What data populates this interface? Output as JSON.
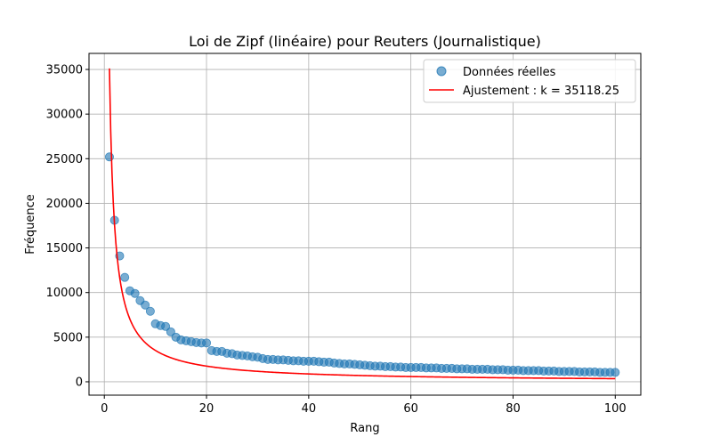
{
  "chart_data": {
    "type": "scatter",
    "title": "Loi de Zipf (linéaire) pour Reuters (Journalistique)",
    "xlabel": "Rang",
    "ylabel": "Fréquence",
    "xlim": [
      -3,
      105
    ],
    "ylim": [
      -1500,
      36800
    ],
    "x_ticks": [
      0,
      20,
      40,
      60,
      80,
      100
    ],
    "y_ticks": [
      0,
      5000,
      10000,
      15000,
      20000,
      25000,
      30000,
      35000
    ],
    "grid": true,
    "legend_position": "top-right",
    "fit_k": 35118.25,
    "series": [
      {
        "name": "Données réelles",
        "kind": "scatter",
        "color": "#1f77b4",
        "x": [
          1,
          2,
          3,
          4,
          5,
          6,
          7,
          8,
          9,
          10,
          11,
          12,
          13,
          14,
          15,
          16,
          17,
          18,
          19,
          20,
          21,
          22,
          23,
          24,
          25,
          26,
          27,
          28,
          29,
          30,
          31,
          32,
          33,
          34,
          35,
          36,
          37,
          38,
          39,
          40,
          41,
          42,
          43,
          44,
          45,
          46,
          47,
          48,
          49,
          50,
          51,
          52,
          53,
          54,
          55,
          56,
          57,
          58,
          59,
          60,
          61,
          62,
          63,
          64,
          65,
          66,
          67,
          68,
          69,
          70,
          71,
          72,
          73,
          74,
          75,
          76,
          77,
          78,
          79,
          80,
          81,
          82,
          83,
          84,
          85,
          86,
          87,
          88,
          89,
          90,
          91,
          92,
          93,
          94,
          95,
          96,
          97,
          98,
          99,
          100
        ],
        "y": [
          25200,
          18100,
          14100,
          11700,
          10200,
          9900,
          9100,
          8600,
          7900,
          6500,
          6300,
          6200,
          5600,
          5000,
          4700,
          4600,
          4500,
          4400,
          4350,
          4350,
          3500,
          3400,
          3400,
          3200,
          3150,
          3000,
          2950,
          2900,
          2800,
          2750,
          2600,
          2500,
          2500,
          2450,
          2450,
          2400,
          2350,
          2350,
          2300,
          2300,
          2300,
          2250,
          2200,
          2200,
          2100,
          2050,
          2000,
          2000,
          1950,
          1900,
          1850,
          1800,
          1750,
          1750,
          1700,
          1700,
          1650,
          1650,
          1600,
          1600,
          1600,
          1600,
          1550,
          1550,
          1550,
          1500,
          1500,
          1500,
          1450,
          1450,
          1450,
          1400,
          1400,
          1400,
          1400,
          1350,
          1350,
          1350,
          1300,
          1300,
          1300,
          1250,
          1250,
          1250,
          1250,
          1200,
          1200,
          1200,
          1150,
          1150,
          1150,
          1150,
          1100,
          1100,
          1100,
          1100,
          1050,
          1050,
          1050,
          1050
        ]
      },
      {
        "name": "Ajustement : k = 35118.25",
        "kind": "line",
        "color": "#ff0000"
      }
    ]
  }
}
